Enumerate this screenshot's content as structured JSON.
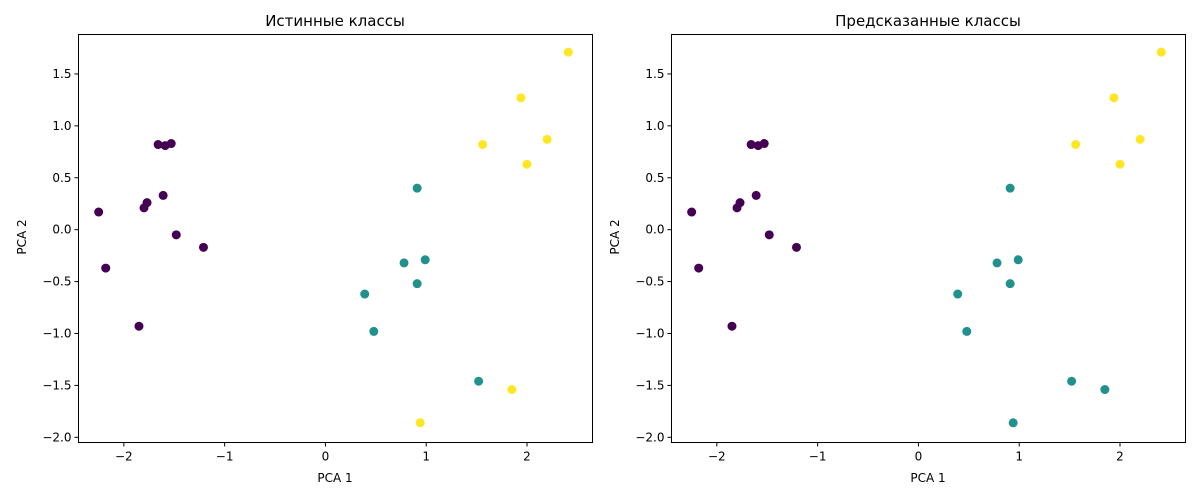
{
  "colors": {
    "class0": "#440154",
    "class1": "#21918c",
    "class2": "#fde725"
  },
  "chart_data": [
    {
      "type": "scatter",
      "title": "Истинные классы",
      "xlabel": "PCA 1",
      "ylabel": "PCA 2",
      "xlim": [
        -2.45,
        2.65
      ],
      "ylim": [
        -2.05,
        1.88
      ],
      "xticks": [
        -2,
        -1,
        0,
        1,
        2
      ],
      "yticks": [
        -2.0,
        -1.5,
        -1.0,
        -0.5,
        0.0,
        0.5,
        1.0,
        1.5
      ],
      "xtick_labels": [
        "−2",
        "−1",
        "0",
        "1",
        "2"
      ],
      "ytick_labels": [
        "−2.0",
        "−1.5",
        "−1.0",
        "−0.5",
        "0.0",
        "0.5",
        "1.0",
        "1.5"
      ],
      "grid": false,
      "points": [
        {
          "x": -2.25,
          "y": 0.17,
          "c": 0
        },
        {
          "x": -2.18,
          "y": -0.37,
          "c": 0
        },
        {
          "x": -1.85,
          "y": -0.93,
          "c": 0
        },
        {
          "x": -1.8,
          "y": 0.21,
          "c": 0
        },
        {
          "x": -1.77,
          "y": 0.26,
          "c": 0
        },
        {
          "x": -1.66,
          "y": 0.82,
          "c": 0
        },
        {
          "x": -1.61,
          "y": 0.33,
          "c": 0
        },
        {
          "x": -1.59,
          "y": 0.81,
          "c": 0
        },
        {
          "x": -1.53,
          "y": 0.83,
          "c": 0
        },
        {
          "x": -1.48,
          "y": -0.05,
          "c": 0
        },
        {
          "x": -1.21,
          "y": -0.17,
          "c": 0
        },
        {
          "x": 0.39,
          "y": -0.62,
          "c": 1
        },
        {
          "x": 0.48,
          "y": -0.98,
          "c": 1
        },
        {
          "x": 0.78,
          "y": -0.32,
          "c": 1
        },
        {
          "x": 0.91,
          "y": 0.4,
          "c": 1
        },
        {
          "x": 0.91,
          "y": -0.52,
          "c": 1
        },
        {
          "x": 0.99,
          "y": -0.29,
          "c": 1
        },
        {
          "x": 1.52,
          "y": -1.46,
          "c": 1
        },
        {
          "x": 0.94,
          "y": -1.86,
          "c": 2
        },
        {
          "x": 1.56,
          "y": 0.82,
          "c": 2
        },
        {
          "x": 1.85,
          "y": -1.54,
          "c": 2
        },
        {
          "x": 1.94,
          "y": 1.27,
          "c": 2
        },
        {
          "x": 2.0,
          "y": 0.63,
          "c": 2
        },
        {
          "x": 2.2,
          "y": 0.87,
          "c": 2
        },
        {
          "x": 2.41,
          "y": 1.71,
          "c": 2
        }
      ]
    },
    {
      "type": "scatter",
      "title": "Предсказанные классы",
      "xlabel": "PCA 1",
      "ylabel": "PCA 2",
      "xlim": [
        -2.45,
        2.65
      ],
      "ylim": [
        -2.05,
        1.88
      ],
      "xticks": [
        -2,
        -1,
        0,
        1,
        2
      ],
      "yticks": [
        -2.0,
        -1.5,
        -1.0,
        -0.5,
        0.0,
        0.5,
        1.0,
        1.5
      ],
      "xtick_labels": [
        "−2",
        "−1",
        "0",
        "1",
        "2"
      ],
      "ytick_labels": [
        "−2.0",
        "−1.5",
        "−1.0",
        "−0.5",
        "0.0",
        "0.5",
        "1.0",
        "1.5"
      ],
      "grid": false,
      "points": [
        {
          "x": -2.25,
          "y": 0.17,
          "c": 0
        },
        {
          "x": -2.18,
          "y": -0.37,
          "c": 0
        },
        {
          "x": -1.85,
          "y": -0.93,
          "c": 0
        },
        {
          "x": -1.8,
          "y": 0.21,
          "c": 0
        },
        {
          "x": -1.77,
          "y": 0.26,
          "c": 0
        },
        {
          "x": -1.66,
          "y": 0.82,
          "c": 0
        },
        {
          "x": -1.61,
          "y": 0.33,
          "c": 0
        },
        {
          "x": -1.59,
          "y": 0.81,
          "c": 0
        },
        {
          "x": -1.53,
          "y": 0.83,
          "c": 0
        },
        {
          "x": -1.48,
          "y": -0.05,
          "c": 0
        },
        {
          "x": -1.21,
          "y": -0.17,
          "c": 0
        },
        {
          "x": 0.39,
          "y": -0.62,
          "c": 1
        },
        {
          "x": 0.48,
          "y": -0.98,
          "c": 1
        },
        {
          "x": 0.78,
          "y": -0.32,
          "c": 1
        },
        {
          "x": 0.91,
          "y": 0.4,
          "c": 1
        },
        {
          "x": 0.91,
          "y": -0.52,
          "c": 1
        },
        {
          "x": 0.99,
          "y": -0.29,
          "c": 1
        },
        {
          "x": 1.52,
          "y": -1.46,
          "c": 1
        },
        {
          "x": 0.94,
          "y": -1.86,
          "c": 1
        },
        {
          "x": 1.85,
          "y": -1.54,
          "c": 1
        },
        {
          "x": 1.56,
          "y": 0.82,
          "c": 2
        },
        {
          "x": 1.94,
          "y": 1.27,
          "c": 2
        },
        {
          "x": 2.0,
          "y": 0.63,
          "c": 2
        },
        {
          "x": 2.2,
          "y": 0.87,
          "c": 2
        },
        {
          "x": 2.41,
          "y": 1.71,
          "c": 2
        }
      ]
    }
  ]
}
